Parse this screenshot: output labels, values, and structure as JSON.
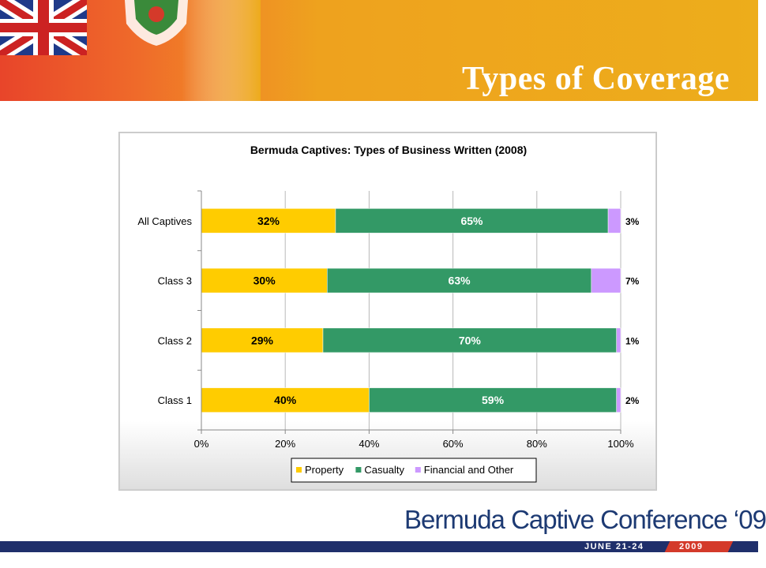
{
  "header": {
    "title": "Types of  Coverage"
  },
  "chart_data": {
    "type": "bar",
    "orientation": "horizontal",
    "stacked": true,
    "title": "Bermuda Captives: Types of Business Written (2008)",
    "categories": [
      "All Captives",
      "Class 3",
      "Class 2",
      "Class 1"
    ],
    "series": [
      {
        "name": "Property",
        "color": "#ffcc00",
        "values": [
          32,
          30,
          29,
          40
        ],
        "labels": [
          "32%",
          "30%",
          "29%",
          "40%"
        ]
      },
      {
        "name": "Casualty",
        "color": "#339966",
        "values": [
          65,
          63,
          70,
          59
        ],
        "labels": [
          "65%",
          "63%",
          "70%",
          "59%"
        ]
      },
      {
        "name": "Financial and Other",
        "color": "#cc99ff",
        "values": [
          3,
          7,
          1,
          2
        ],
        "labels": [
          "3%",
          "7%",
          "1%",
          "2%"
        ]
      }
    ],
    "xaxis": {
      "ticks": [
        "0%",
        "20%",
        "40%",
        "60%",
        "80%",
        "100%"
      ],
      "range": [
        0,
        100
      ]
    },
    "grid": true,
    "legend_position": "bottom"
  },
  "footer": {
    "conference_name": "Bermuda Captive Conference ‘09",
    "dates": "JUNE 21-24",
    "year": "2009"
  },
  "icons": [
    "flag-icon",
    "crest-icon"
  ]
}
